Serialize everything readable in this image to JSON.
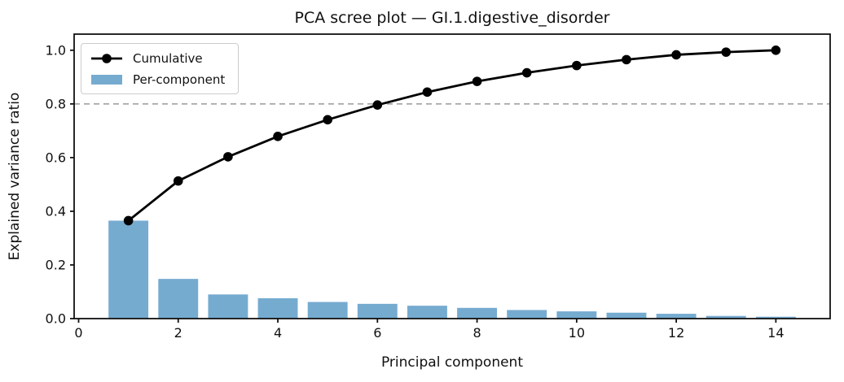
{
  "chart_data": {
    "type": "bar",
    "title": "PCA scree plot — GI.1.digestive_disorder",
    "xlabel": "Principal component",
    "ylabel": "Explained variance ratio",
    "categories": [
      1,
      2,
      3,
      4,
      5,
      6,
      7,
      8,
      9,
      10,
      11,
      12,
      13,
      14
    ],
    "series": [
      {
        "name": "Cumulative",
        "type": "line",
        "color": "#000000",
        "marker": "circle",
        "values": [
          0.365,
          0.513,
          0.603,
          0.679,
          0.741,
          0.796,
          0.844,
          0.884,
          0.916,
          0.943,
          0.965,
          0.983,
          0.993,
          1.0
        ]
      },
      {
        "name": "Per-component",
        "type": "bar",
        "color": "#76ABD0",
        "values": [
          0.365,
          0.148,
          0.09,
          0.076,
          0.062,
          0.055,
          0.048,
          0.04,
          0.032,
          0.027,
          0.022,
          0.018,
          0.01,
          0.007
        ]
      }
    ],
    "reference_line": {
      "y": 0.8,
      "style": "dashed",
      "color": "#9a9a9a"
    },
    "xticks": [
      0,
      2,
      4,
      6,
      8,
      10,
      12,
      14
    ],
    "ytick_labels": [
      "0.0",
      "0.2",
      "0.4",
      "0.6",
      "0.8",
      "1.0"
    ],
    "xlim": [
      -0.09,
      15.09
    ],
    "ylim": [
      0,
      1.06
    ],
    "bar_width": 0.8,
    "grid": false,
    "legend_position": "upper-left",
    "axis_color": "#111111"
  }
}
